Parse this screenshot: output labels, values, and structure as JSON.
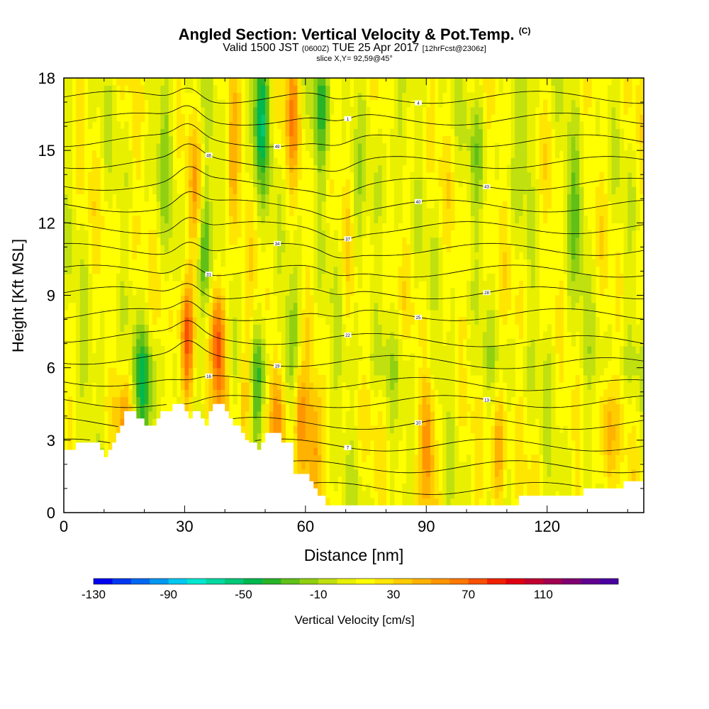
{
  "header": {
    "title": "Angled Section: Vertical Velocity & Pot.Temp.",
    "title_mark": "(C)",
    "valid_prefix": "Valid 1500 JST",
    "valid_utc": "(0600Z)",
    "valid_date": "TUE 25 Apr 2017",
    "forecast": "[12hrFcst@2306z]",
    "slice": "slice X,Y= 92,59@45°"
  },
  "chart_data": {
    "type": "heatmap",
    "title": "Angled Section: Vertical Velocity & Pot.Temp.",
    "xlabel": "Distance [nm]",
    "ylabel": "Height [Kft MSL]",
    "xlim": [
      0,
      144
    ],
    "ylim": [
      0,
      18
    ],
    "x_ticks": [
      0,
      30,
      60,
      90,
      120
    ],
    "y_ticks": [
      0,
      3,
      6,
      9,
      12,
      15,
      18
    ],
    "colorbar": {
      "label": "Vertical Velocity [cm/s]",
      "min": -130,
      "max": 150,
      "step": 10,
      "tick_labels": [
        "-130",
        "-90",
        "-50",
        "-10",
        "30",
        "70",
        "110"
      ],
      "colors": [
        "#0000f0",
        "#0038f0",
        "#0068f0",
        "#0098f0",
        "#00c8f0",
        "#00e8d0",
        "#00d8a0",
        "#00c878",
        "#00b850",
        "#28b428",
        "#60c018",
        "#90d010",
        "#c0e010",
        "#e8f000",
        "#ffff00",
        "#ffe600",
        "#ffcc00",
        "#ffb200",
        "#ff9600",
        "#ff7800",
        "#f85000",
        "#f02000",
        "#e00010",
        "#c00030",
        "#a00050",
        "#800070",
        "#600090",
        "#4a00a0"
      ]
    },
    "terrain_profile": [
      [
        0,
        2.6
      ],
      [
        3,
        2.9
      ],
      [
        8,
        2.9
      ],
      [
        9,
        2.6
      ],
      [
        10,
        2.3
      ],
      [
        11,
        2.6
      ],
      [
        12,
        2.9
      ],
      [
        13,
        3.3
      ],
      [
        14,
        3.6
      ],
      [
        15,
        4.2
      ],
      [
        17,
        4.2
      ],
      [
        18,
        3.9
      ],
      [
        19,
        3.9
      ],
      [
        20,
        3.6
      ],
      [
        23,
        3.9
      ],
      [
        24,
        4.2
      ],
      [
        27,
        4.5
      ],
      [
        29,
        4.5
      ],
      [
        30,
        4.2
      ],
      [
        31,
        3.9
      ],
      [
        32,
        4.2
      ],
      [
        34,
        3.9
      ],
      [
        35,
        3.6
      ],
      [
        36,
        4.2
      ],
      [
        37,
        4.5
      ],
      [
        40,
        4.2
      ],
      [
        41,
        3.9
      ],
      [
        42,
        3.6
      ],
      [
        44,
        3.3
      ],
      [
        45,
        3.0
      ],
      [
        46,
        2.9
      ],
      [
        47,
        2.9
      ],
      [
        48,
        2.6
      ],
      [
        49,
        2.9
      ],
      [
        50,
        3.3
      ],
      [
        53,
        3.3
      ],
      [
        54,
        2.9
      ],
      [
        57,
        1.6
      ],
      [
        60,
        1.6
      ],
      [
        61,
        1.3
      ],
      [
        62,
        1.0
      ],
      [
        63,
        0.7
      ],
      [
        65,
        0.3
      ],
      [
        75,
        0.3
      ],
      [
        112,
        0.3
      ],
      [
        113,
        0.7
      ],
      [
        128,
        0.7
      ],
      [
        129,
        1.0
      ],
      [
        138,
        1.0
      ],
      [
        139,
        1.3
      ],
      [
        144,
        1.3
      ]
    ],
    "updrafts": [
      {
        "x": 30.5,
        "y": 7.0,
        "w": 70
      },
      {
        "x": 38.5,
        "y": 7.0,
        "w": 70
      },
      {
        "x": 53.0,
        "y": 4.5,
        "w": 50
      },
      {
        "x": 45.0,
        "y": 5.5,
        "w": 35
      },
      {
        "x": 58.5,
        "y": 4.0,
        "w": 55
      },
      {
        "x": 62.0,
        "y": 2.5,
        "w": 45
      },
      {
        "x": 15.0,
        "y": 3.5,
        "w": 35
      },
      {
        "x": 90.5,
        "y": 3.0,
        "w": 45
      },
      {
        "x": 108.0,
        "y": 2.5,
        "w": 35
      },
      {
        "x": 135.0,
        "y": 3.0,
        "w": 35
      },
      {
        "x": 57.0,
        "y": 17.0,
        "w": 40
      },
      {
        "x": 33.0,
        "y": 13.0,
        "w": 30
      },
      {
        "x": 42.0,
        "y": 15.0,
        "w": 30
      },
      {
        "x": 71.0,
        "y": 11.0,
        "w": 25
      }
    ],
    "downdrafts": [
      {
        "x": 20.0,
        "y": 5.0,
        "w": -40
      },
      {
        "x": 35.0,
        "y": 11.0,
        "w": -45
      },
      {
        "x": 48.0,
        "y": 5.0,
        "w": -40
      },
      {
        "x": 49.0,
        "y": 16.5,
        "w": -55
      },
      {
        "x": 64.0,
        "y": 17.0,
        "w": -40
      },
      {
        "x": 57.0,
        "y": 8.0,
        "w": -30
      },
      {
        "x": 72.0,
        "y": 12.0,
        "w": -30
      },
      {
        "x": 103.0,
        "y": 15.0,
        "w": -20
      },
      {
        "x": 127.0,
        "y": 12.5,
        "w": -30
      },
      {
        "x": 115.0,
        "y": 16.5,
        "w": -25
      },
      {
        "x": 25.0,
        "y": 15.0,
        "w": -20
      },
      {
        "x": 82.0,
        "y": 16.0,
        "w": -20
      }
    ],
    "isentrope_labels": [
      "1",
      "4",
      "7",
      "10",
      "13",
      "16",
      "19",
      "22",
      "25",
      "28",
      "31",
      "34",
      "37",
      "40",
      "43",
      "46",
      "49"
    ]
  }
}
